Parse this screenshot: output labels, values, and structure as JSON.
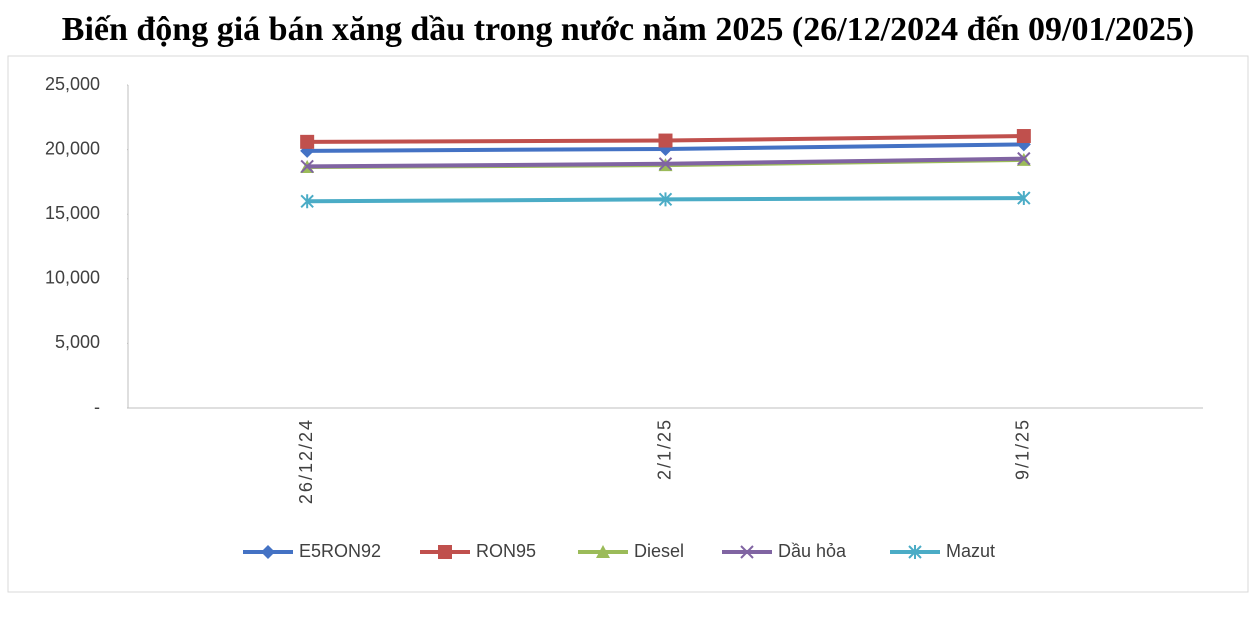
{
  "chart_data": {
    "type": "line",
    "title": "Biến động giá bán xăng dầu trong nước năm 2025 (26/12/2024 đến 09/01/2025)",
    "categories": [
      "26/12/24",
      "2/1/25",
      "9/1/25"
    ],
    "series": [
      {
        "name": "E5RON92",
        "color": "#4472c4",
        "marker": "diamond",
        "values": [
          19900,
          20050,
          20400
        ]
      },
      {
        "name": "RON95",
        "color": "#c0504d",
        "marker": "square",
        "values": [
          20600,
          20700,
          21050
        ]
      },
      {
        "name": "Diesel",
        "color": "#9bbb59",
        "marker": "triangle",
        "values": [
          18650,
          18800,
          19200
        ]
      },
      {
        "name": "Dầu hỏa",
        "color": "#8064a2",
        "marker": "x",
        "values": [
          18700,
          18900,
          19300
        ]
      },
      {
        "name": "Mazut",
        "color": "#4bacc6",
        "marker": "star",
        "values": [
          16000,
          16150,
          16250
        ]
      }
    ],
    "ylim": [
      0,
      25000
    ],
    "yticks": [
      {
        "value": 0,
        "label": "-"
      },
      {
        "value": 5000,
        "label": "5,000"
      },
      {
        "value": 10000,
        "label": "10,000"
      },
      {
        "value": 15000,
        "label": "15,000"
      },
      {
        "value": 20000,
        "label": "20,000"
      },
      {
        "value": 25000,
        "label": "25,000"
      }
    ],
    "grid": false,
    "legend": "bottom"
  }
}
